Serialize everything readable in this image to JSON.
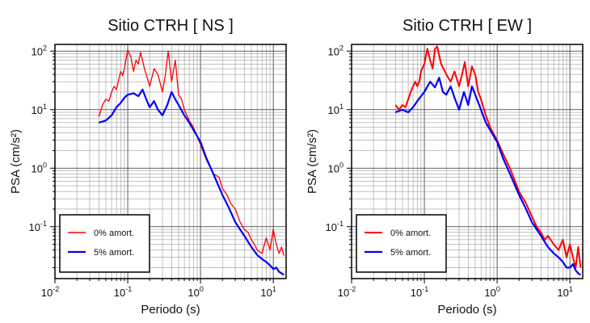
{
  "chart_data": [
    {
      "type": "line",
      "title": "Sitio CTRH [ NS ]",
      "xlabel": "Periodo (s)",
      "ylabel": "PSA (cm/s²)",
      "xscale": "log",
      "yscale": "log",
      "xlim": [
        0.01,
        15
      ],
      "ylim": [
        0.013,
        130
      ],
      "xticks": [
        "10^-2",
        "10^-1",
        "10^0",
        "10^1"
      ],
      "yticks": [
        "10^-1",
        "10^0",
        "10^1",
        "10^2"
      ],
      "grid": true,
      "legend_position": "bottom-left",
      "series": [
        {
          "name": "0% amort.",
          "color": "#ff0000",
          "x": [
            0.04,
            0.045,
            0.05,
            0.055,
            0.06,
            0.065,
            0.07,
            0.075,
            0.08,
            0.085,
            0.09,
            0.1,
            0.11,
            0.12,
            0.13,
            0.14,
            0.15,
            0.17,
            0.2,
            0.23,
            0.26,
            0.3,
            0.33,
            0.36,
            0.4,
            0.45,
            0.5,
            0.55,
            0.6,
            0.7,
            0.8,
            1.0,
            1.2,
            1.5,
            1.8,
            2.0,
            2.3,
            2.6,
            3.0,
            3.5,
            4.0,
            4.5,
            5,
            5.5,
            6,
            7,
            8,
            9,
            10,
            11,
            12,
            13,
            14
          ],
          "y": [
            7.5,
            12,
            15,
            14,
            20,
            25,
            22,
            32,
            45,
            38,
            50,
            105,
            80,
            45,
            70,
            60,
            95,
            50,
            25,
            50,
            40,
            20,
            40,
            100,
            30,
            70,
            18,
            15,
            10,
            6.5,
            5,
            2.5,
            1.4,
            0.8,
            0.7,
            0.45,
            0.35,
            0.25,
            0.2,
            0.12,
            0.09,
            0.08,
            0.06,
            0.05,
            0.04,
            0.035,
            0.065,
            0.04,
            0.09,
            0.05,
            0.035,
            0.045,
            0.032
          ]
        },
        {
          "name": "5% amort.",
          "color": "#0000ff",
          "x": [
            0.04,
            0.05,
            0.06,
            0.07,
            0.08,
            0.09,
            0.1,
            0.12,
            0.14,
            0.16,
            0.18,
            0.2,
            0.23,
            0.26,
            0.3,
            0.35,
            0.4,
            0.45,
            0.5,
            0.6,
            0.7,
            0.8,
            1.0,
            1.2,
            1.5,
            2.0,
            2.5,
            3.0,
            4.0,
            5.0,
            6.0,
            7.0,
            8.0,
            9.0,
            10.0,
            11.0,
            12.0,
            13.0,
            14.0
          ],
          "y": [
            6,
            6.5,
            8,
            11,
            13,
            16,
            18,
            19,
            17,
            22,
            15,
            11,
            14,
            10,
            8,
            12,
            20,
            15,
            12,
            8,
            6,
            4.5,
            2.8,
            1.5,
            0.8,
            0.35,
            0.2,
            0.12,
            0.07,
            0.045,
            0.033,
            0.028,
            0.025,
            0.022,
            0.019,
            0.02,
            0.017,
            0.016,
            0.015
          ]
        }
      ]
    },
    {
      "type": "line",
      "title": "Sitio CTRH [ EW ]",
      "xlabel": "Periodo (s)",
      "ylabel": "PSA (cm/s²)",
      "xscale": "log",
      "yscale": "log",
      "xlim": [
        0.01,
        15
      ],
      "ylim": [
        0.013,
        130
      ],
      "xticks": [
        "10^-2",
        "10^-1",
        "10^0",
        "10^1"
      ],
      "yticks": [
        "10^-1",
        "10^0",
        "10^1",
        "10^2"
      ],
      "grid": true,
      "legend_position": "bottom-left",
      "series": [
        {
          "name": "0% amort.",
          "color": "#ff0000",
          "x": [
            0.04,
            0.045,
            0.05,
            0.055,
            0.06,
            0.065,
            0.07,
            0.075,
            0.08,
            0.085,
            0.09,
            0.1,
            0.11,
            0.12,
            0.13,
            0.14,
            0.15,
            0.17,
            0.2,
            0.23,
            0.26,
            0.3,
            0.33,
            0.36,
            0.4,
            0.45,
            0.5,
            0.55,
            0.6,
            0.7,
            0.8,
            1.0,
            1.2,
            1.5,
            2.0,
            2.5,
            3.0,
            3.5,
            4.0,
            4.5,
            5,
            6,
            7,
            8,
            9,
            10,
            11,
            12,
            13,
            14
          ],
          "y": [
            12,
            10,
            12,
            11,
            15,
            20,
            25,
            30,
            25,
            30,
            45,
            60,
            110,
            70,
            50,
            110,
            120,
            60,
            40,
            30,
            45,
            25,
            40,
            65,
            25,
            55,
            40,
            20,
            15,
            8,
            5,
            3,
            1.8,
            1.0,
            0.4,
            0.25,
            0.15,
            0.1,
            0.08,
            0.06,
            0.07,
            0.05,
            0.04,
            0.06,
            0.03,
            0.05,
            0.03,
            0.02,
            0.045,
            0.02
          ]
        },
        {
          "name": "5% amort.",
          "color": "#0000ff",
          "x": [
            0.04,
            0.05,
            0.06,
            0.07,
            0.08,
            0.09,
            0.1,
            0.12,
            0.14,
            0.16,
            0.18,
            0.2,
            0.23,
            0.26,
            0.3,
            0.35,
            0.4,
            0.45,
            0.5,
            0.6,
            0.7,
            0.8,
            1.0,
            1.2,
            1.5,
            2.0,
            2.5,
            3.0,
            4.0,
            5.0,
            6.0,
            7.0,
            8.0,
            9.0,
            10.0,
            11.0,
            12.0,
            13.0,
            14.0
          ],
          "y": [
            9,
            10,
            9,
            11,
            14,
            17,
            20,
            30,
            24,
            35,
            20,
            18,
            25,
            16,
            10,
            20,
            12,
            25,
            18,
            10,
            6,
            4.5,
            2.8,
            1.5,
            0.8,
            0.35,
            0.2,
            0.12,
            0.07,
            0.045,
            0.035,
            0.03,
            0.025,
            0.02,
            0.02,
            0.023,
            0.018,
            0.016,
            0.015
          ]
        }
      ]
    }
  ]
}
